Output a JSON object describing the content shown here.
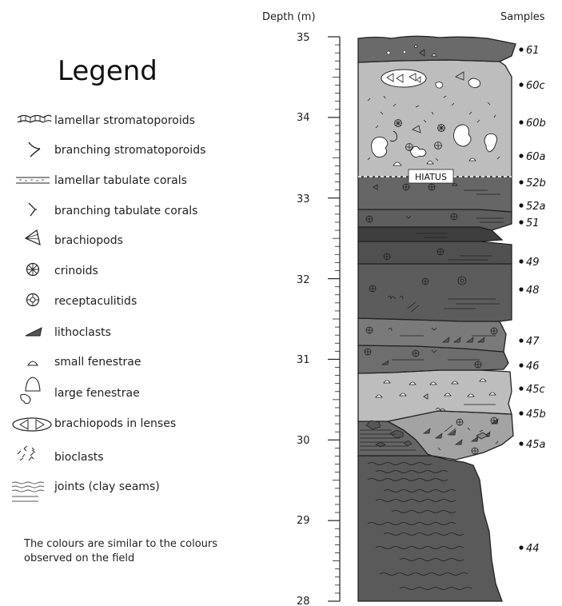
{
  "depth_axis": {
    "title": "Depth (m)",
    "ticks": [
      "35",
      "34",
      "33",
      "32",
      "31",
      "30",
      "29",
      "28"
    ]
  },
  "samples_title": "Samples",
  "legend": {
    "title": "Legend",
    "items": [
      {
        "icon": "lamellar-stromatoporoid-icon",
        "label": "lamellar stromatoporoids"
      },
      {
        "icon": "branching-stromatoporoid-icon",
        "label": "branching stromatoporoids"
      },
      {
        "icon": "lamellar-tabulate-coral-icon",
        "label": "lamellar tabulate corals"
      },
      {
        "icon": "branching-tabulate-coral-icon",
        "label": "branching tabulate corals"
      },
      {
        "icon": "brachiopod-icon",
        "label": "brachiopods"
      },
      {
        "icon": "crinoid-icon",
        "label": "crinoids"
      },
      {
        "icon": "receptaculitid-icon",
        "label": "receptaculitids"
      },
      {
        "icon": "lithoclast-icon",
        "label": "lithoclasts"
      },
      {
        "icon": "small-fenestrae-icon",
        "label": "small fenestrae"
      },
      {
        "icon": "large-fenestrae-icon",
        "label": "large fenestrae"
      },
      {
        "icon": "brachiopod-lens-icon",
        "label": "brachiopods in lenses"
      },
      {
        "icon": "bioclast-icon",
        "label": "bioclasts"
      },
      {
        "icon": "joints-icon",
        "label": "joints (clay seams)"
      }
    ]
  },
  "note": {
    "line1": "The colours are similar to the colours",
    "line2": "observed on the field"
  },
  "hiatus_label": "HIATUS",
  "samples": [
    "61",
    "60c",
    "60b",
    "60a",
    "52b",
    "52a",
    "51",
    "49",
    "48",
    "47",
    "46",
    "45c",
    "45b",
    "45a",
    "44"
  ],
  "colors": {
    "dark_grey": "#5a5a5a",
    "mid_grey": "#8c8c8c",
    "light_grey": "#bdbdbd",
    "line": "#222222"
  }
}
